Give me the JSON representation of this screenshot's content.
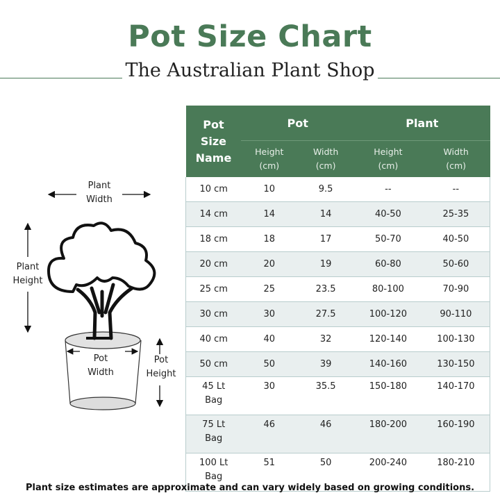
{
  "header": {
    "title": "Pot Size Chart",
    "subtitle": "The Australian Plant Shop"
  },
  "diagram": {
    "plant_width": [
      "Plant",
      "Width"
    ],
    "plant_height": [
      "Plant",
      "Height"
    ],
    "pot_width": [
      "Pot",
      "Width"
    ],
    "pot_height": [
      "Pot",
      "Height"
    ]
  },
  "table": {
    "name_header": [
      "Pot",
      "Size",
      "Name"
    ],
    "group_pot": "Pot",
    "group_plant": "Plant",
    "sub_headers": [
      [
        "Height",
        "(cm)"
      ],
      [
        "Width",
        "(cm)"
      ],
      [
        "Height",
        "(cm)"
      ],
      [
        "Width",
        "(cm)"
      ]
    ],
    "rows": [
      {
        "name": [
          "10 cm"
        ],
        "pot_h": "10",
        "pot_w": "9.5",
        "plant_h": "--",
        "plant_w": "--"
      },
      {
        "name": [
          "14 cm"
        ],
        "pot_h": "14",
        "pot_w": "14",
        "plant_h": "40-50",
        "plant_w": "25-35"
      },
      {
        "name": [
          "18 cm"
        ],
        "pot_h": "18",
        "pot_w": "17",
        "plant_h": "50-70",
        "plant_w": "40-50"
      },
      {
        "name": [
          "20 cm"
        ],
        "pot_h": "20",
        "pot_w": "19",
        "plant_h": "60-80",
        "plant_w": "50-60"
      },
      {
        "name": [
          "25 cm"
        ],
        "pot_h": "25",
        "pot_w": "23.5",
        "plant_h": "80-100",
        "plant_w": "70-90"
      },
      {
        "name": [
          "30 cm"
        ],
        "pot_h": "30",
        "pot_w": "27.5",
        "plant_h": "100-120",
        "plant_w": "90-110"
      },
      {
        "name": [
          "40 cm"
        ],
        "pot_h": "40",
        "pot_w": "32",
        "plant_h": "120-140",
        "plant_w": "100-130"
      },
      {
        "name": [
          "50 cm"
        ],
        "pot_h": "50",
        "pot_w": "39",
        "plant_h": "140-160",
        "plant_w": "130-150"
      },
      {
        "name": [
          "45 Lt",
          "Bag"
        ],
        "pot_h": "30",
        "pot_w": "35.5",
        "plant_h": "150-180",
        "plant_w": "140-170"
      },
      {
        "name": [
          "75 Lt",
          "Bag"
        ],
        "pot_h": "46",
        "pot_w": "46",
        "plant_h": "180-200",
        "plant_w": "160-190"
      },
      {
        "name": [
          "100 Lt",
          "Bag"
        ],
        "pot_h": "51",
        "pot_w": "50",
        "plant_h": "200-240",
        "plant_w": "180-210"
      }
    ]
  },
  "footer": {
    "note": "Plant size estimates are approximate and can vary widely based on growing conditions."
  },
  "colors": {
    "brand_green": "#4a7a57",
    "row_alt": "#e9efef"
  }
}
